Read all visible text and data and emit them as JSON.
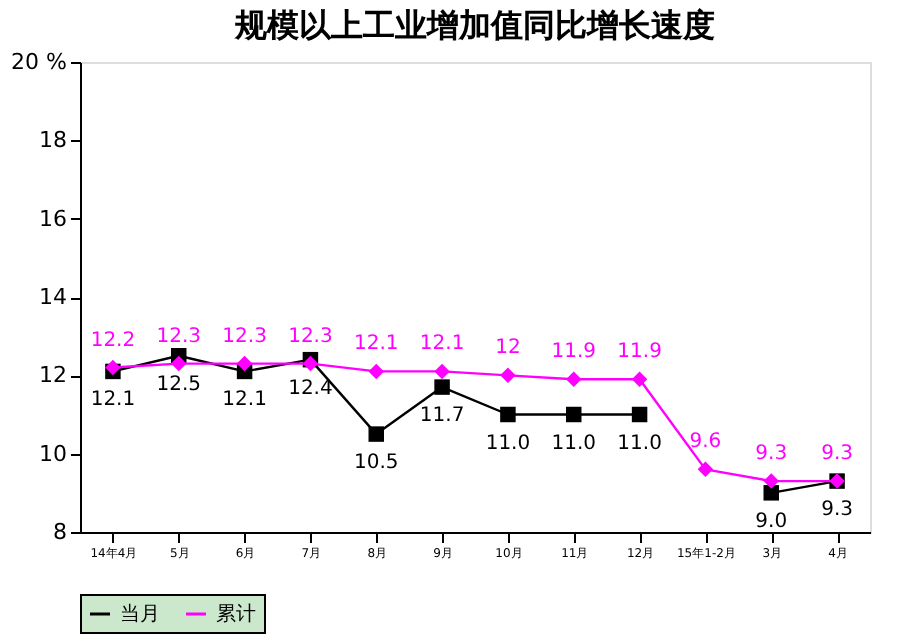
{
  "chart_data": {
    "type": "line",
    "title": "规模以上工业增加值同比增长速度",
    "categories": [
      "14年4月",
      "5月",
      "6月",
      "7月",
      "8月",
      "9月",
      "10月",
      "11月",
      "12月",
      "15年1-2月",
      "3月",
      "4月"
    ],
    "series": [
      {
        "name": "当月",
        "color": "#000000",
        "marker": "square",
        "values": [
          12.1,
          12.5,
          12.1,
          12.4,
          10.5,
          11.7,
          11.0,
          11.0,
          11.0,
          null,
          9.0,
          9.3
        ],
        "value_labels": [
          "12.1",
          "12.5",
          "12.1",
          "12.4",
          "10.5",
          "11.7",
          "11.0",
          "11.0",
          "11.0",
          null,
          "9.0",
          "9.3"
        ]
      },
      {
        "name": "累计",
        "color": "#ff00ff",
        "marker": "diamond",
        "values": [
          12.2,
          12.3,
          12.3,
          12.3,
          12.1,
          12.1,
          12.0,
          11.9,
          11.9,
          9.6,
          9.3,
          9.3
        ],
        "value_labels": [
          "12.2",
          "12.3",
          "12.3",
          "12.3",
          "12.1",
          "12.1",
          "12",
          "11.9",
          "11.9",
          "9.6",
          "9.3",
          "9.3"
        ]
      }
    ],
    "ylim": [
      8,
      20
    ],
    "yticks": [
      8,
      10,
      12,
      14,
      16,
      18,
      {
        "value": 20,
        "label": "20 %"
      }
    ],
    "grid": false,
    "legend": "bottom",
    "line_style": "solid"
  }
}
